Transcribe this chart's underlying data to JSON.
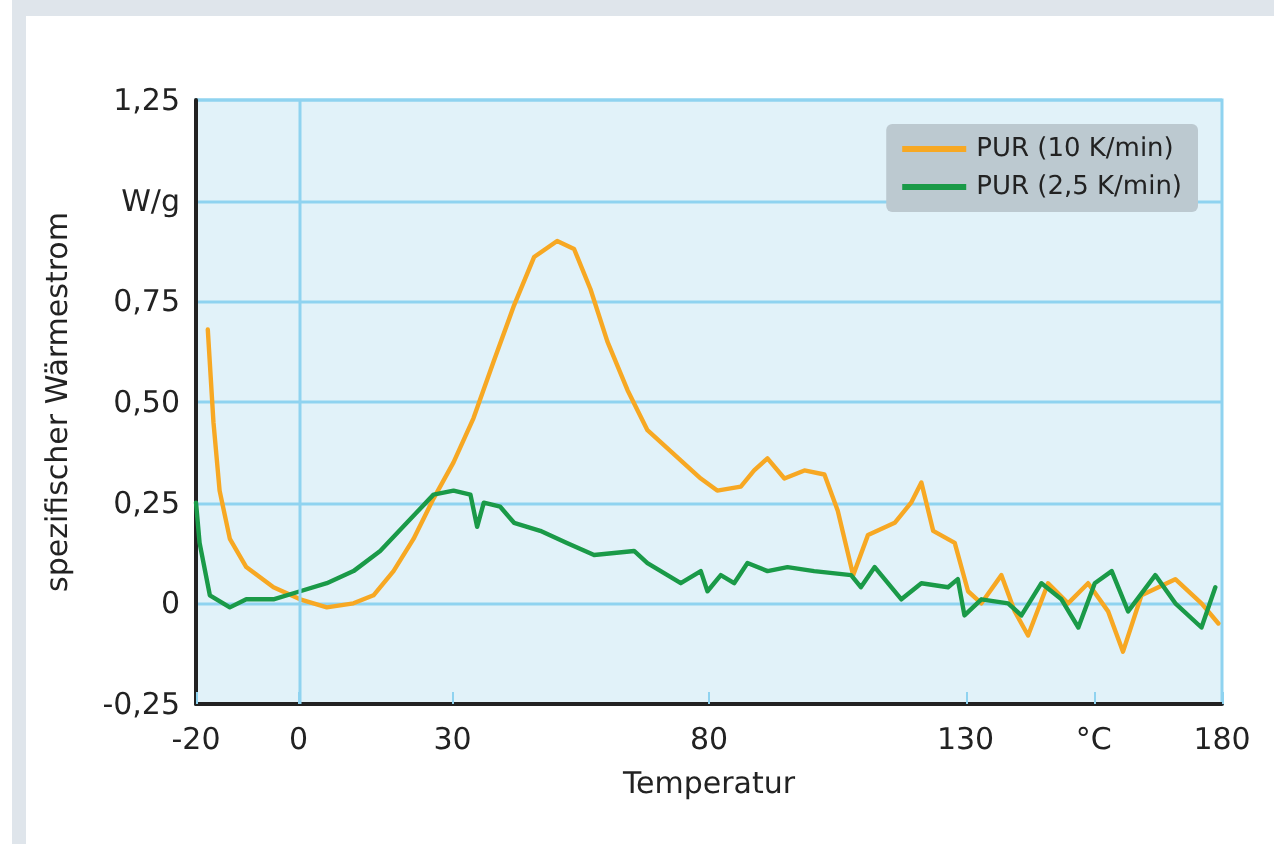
{
  "chart_data": {
    "type": "line",
    "xlabel": "Temperatur",
    "ylabel": "spezifischer Wärmestrom",
    "xlim": [
      -20,
      180
    ],
    "xticks": [
      -20,
      0,
      30,
      80,
      130,
      {
        "value": 155,
        "label": "°C"
      },
      180
    ],
    "ylim": [
      -0.25,
      1.25
    ],
    "yticks": [
      {
        "value": -0.25,
        "label": "-0,25"
      },
      0,
      {
        "value": 0.25,
        "label": "0,25"
      },
      {
        "value": 0.5,
        "label": "0,50"
      },
      {
        "value": 0.75,
        "label": "0,75"
      },
      {
        "value": 1,
        "label": "W/g"
      },
      {
        "value": 1.25,
        "label": "1,25"
      }
    ],
    "grid": "y",
    "legend": "top right",
    "marker": "none",
    "line_style": "solid",
    "ref_lines": [
      {
        "axis": "x",
        "value": 0,
        "color": "#8fd3f0"
      }
    ],
    "series": [
      {
        "name": "PUR (10 K/min)",
        "color": "#f7a823",
        "x": [
          -17.7,
          -16.6,
          -15.4,
          -13.4,
          -10.2,
          -4.9,
          0.3,
          5.5,
          10.7,
          14.6,
          18.5,
          22.4,
          26.3,
          30.2,
          34.1,
          38,
          42,
          45.9,
          50.4,
          53.7,
          56.9,
          60.2,
          64.1,
          68,
          73.2,
          78.4,
          81.6,
          86.2,
          88.8,
          91.4,
          94.7,
          98.6,
          102.5,
          105.1,
          108.1,
          111,
          116.2,
          119.4,
          121.4,
          123.7,
          127.9,
          130.5,
          133.1,
          137,
          139.6,
          142.2,
          146.1,
          150,
          153.9,
          157.8,
          160.7,
          164.3,
          170.9,
          176,
          179.3
        ],
        "values": [
          0.68,
          0.45,
          0.28,
          0.16,
          0.09,
          0.04,
          0.01,
          -0.01,
          0,
          0.02,
          0.08,
          0.16,
          0.26,
          0.35,
          0.46,
          0.6,
          0.74,
          0.86,
          0.9,
          0.88,
          0.78,
          0.65,
          0.53,
          0.43,
          0.37,
          0.31,
          0.28,
          0.29,
          0.33,
          0.36,
          0.31,
          0.33,
          0.32,
          0.23,
          0.07,
          0.17,
          0.2,
          0.25,
          0.3,
          0.18,
          0.15,
          0.03,
          0,
          0.07,
          -0.02,
          -0.08,
          0.05,
          0,
          0.05,
          -0.02,
          -0.12,
          0.02,
          0.06,
          0,
          -0.05
        ]
      },
      {
        "name": "PUR (2,5 K/min)",
        "color": "#1a9a48",
        "x": [
          -20,
          -19.3,
          -17.3,
          -13.4,
          -10.2,
          -4.9,
          0.3,
          5.5,
          10.7,
          15.9,
          21.1,
          26.3,
          30.2,
          33.5,
          34.8,
          36.1,
          39.3,
          42,
          47.1,
          52.3,
          57.6,
          65.4,
          68,
          74.5,
          78.4,
          79.7,
          82.3,
          84.9,
          87.5,
          91.4,
          95.3,
          100.5,
          107.7,
          109.6,
          112.3,
          117.5,
          121.4,
          126.6,
          128.5,
          129.8,
          133.1,
          138.3,
          140.9,
          144.8,
          148.7,
          152,
          155.2,
          158.5,
          161.7,
          167,
          170.9,
          176,
          178.7
        ],
        "values": [
          0.25,
          0.15,
          0.02,
          -0.01,
          0.01,
          0.01,
          0.03,
          0.05,
          0.08,
          0.13,
          0.2,
          0.27,
          0.28,
          0.27,
          0.19,
          0.25,
          0.24,
          0.2,
          0.18,
          0.15,
          0.12,
          0.13,
          0.1,
          0.05,
          0.08,
          0.03,
          0.07,
          0.05,
          0.1,
          0.08,
          0.09,
          0.08,
          0.07,
          0.04,
          0.09,
          0.01,
          0.05,
          0.04,
          0.06,
          -0.03,
          0.01,
          0,
          -0.03,
          0.05,
          0.01,
          -0.06,
          0.05,
          0.08,
          -0.02,
          0.07,
          0,
          -0.06,
          0.04
        ]
      }
    ]
  }
}
